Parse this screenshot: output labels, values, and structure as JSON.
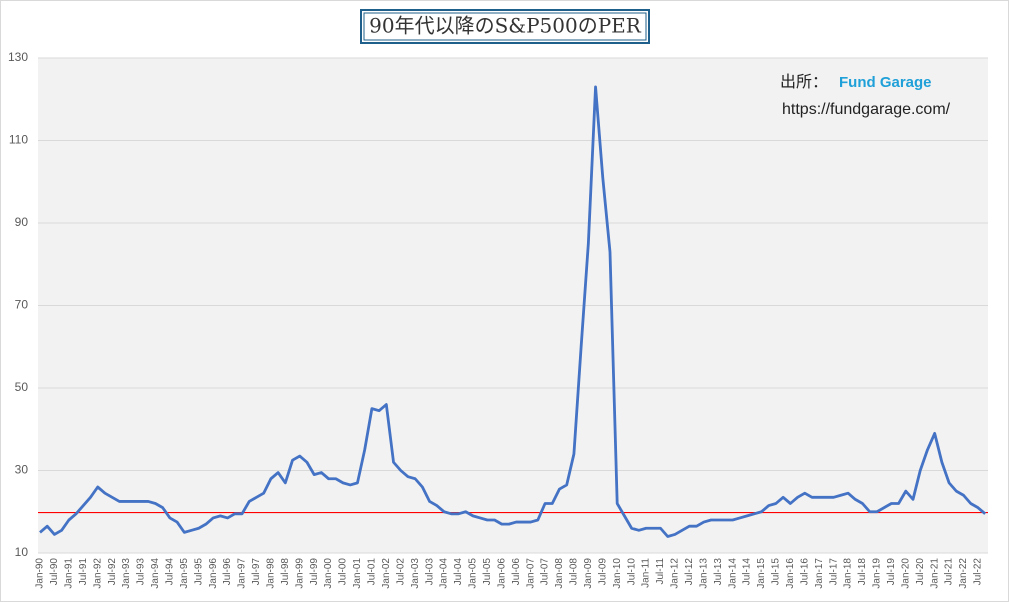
{
  "chart_data": {
    "type": "line",
    "title": "90年代以降のS&P500のPER",
    "annotations": {
      "source_label": "出所：",
      "source_name": "Fund Garage",
      "source_url": "https://fundgarage.com/"
    },
    "categories": [
      "Jan-90",
      null,
      "Jul-90",
      null,
      "Jan-91",
      null,
      "Jul-91",
      null,
      "Jan-92",
      null,
      "Jul-92",
      null,
      "Jan-93",
      null,
      "Jul-93",
      null,
      "Jan-94",
      null,
      "Jul-94",
      null,
      "Jan-95",
      null,
      "Jul-95",
      null,
      "Jan-96",
      null,
      "Jul-96",
      null,
      "Jan-97",
      null,
      "Jul-97",
      null,
      "Jan-98",
      null,
      "Jul-98",
      null,
      "Jan-99",
      null,
      "Jul-99",
      null,
      "Jan-00",
      null,
      "Jul-00",
      null,
      "Jan-01",
      null,
      "Jul-01",
      null,
      "Jan-02",
      null,
      "Jul-02",
      null,
      "Jan-03",
      null,
      "Jul-03",
      null,
      "Jan-04",
      null,
      "Jul-04",
      null,
      "Jan-05",
      null,
      "Jul-05",
      null,
      "Jan-06",
      null,
      "Jul-06",
      null,
      "Jan-07",
      null,
      "Jul-07",
      null,
      "Jan-08",
      null,
      "Jul-08",
      null,
      "Jan-09",
      null,
      "Jul-09",
      null,
      "Jan-10",
      null,
      "Jul-10",
      null,
      "Jan-11",
      null,
      "Jul-11",
      null,
      "Jan-12",
      null,
      "Jul-12",
      null,
      "Jan-13",
      null,
      "Jul-13",
      null,
      "Jan-14",
      null,
      "Jul-14",
      null,
      "Jan-15",
      null,
      "Jul-15",
      null,
      "Jan-16",
      null,
      "Jul-16",
      null,
      "Jan-17",
      null,
      "Jul-17",
      null,
      "Jan-18",
      null,
      "Jul-18",
      null,
      "Jan-19",
      null,
      "Jul-19",
      null,
      "Jan-20",
      null,
      "Jul-20",
      null,
      "Jan-21",
      null,
      "Jul-21",
      null,
      "Jan-22",
      null,
      "Jul-22",
      null
    ],
    "series": [
      {
        "name": "PER",
        "color": "#4472c4",
        "values": [
          15,
          16.5,
          14.5,
          15.5,
          18,
          19.5,
          21.5,
          23.5,
          26,
          24.5,
          23.5,
          22.5,
          22.5,
          22.5,
          22.5,
          22.5,
          22,
          21,
          18.5,
          17.5,
          15,
          15.5,
          16,
          17,
          18.5,
          19,
          18.5,
          19.5,
          19.5,
          22.5,
          23.5,
          24.5,
          28,
          29.5,
          27,
          32.5,
          33.5,
          32,
          29,
          29.5,
          28,
          28,
          27,
          26.5,
          27,
          35,
          45,
          44.5,
          46,
          32,
          30,
          28.5,
          28,
          26,
          22.5,
          21.5,
          20,
          19.5,
          19.5,
          20,
          19,
          18.5,
          18,
          18,
          17,
          17,
          17.5,
          17.5,
          17.5,
          18,
          22,
          22,
          25.5,
          26.5,
          34,
          60,
          85,
          123,
          101,
          83,
          22,
          19,
          16,
          15.5,
          16,
          16,
          16,
          14,
          14.5,
          15.5,
          16.5,
          16.5,
          17.5,
          18,
          18,
          18,
          18,
          18.5,
          19,
          19.5,
          20,
          21.5,
          22,
          23.5,
          22,
          23.5,
          24.5,
          23.5,
          23.5,
          23.5,
          23.5,
          24,
          24.5,
          23,
          22,
          20,
          20,
          21,
          22,
          22,
          25,
          23,
          30,
          35,
          39,
          32,
          27,
          25,
          24,
          22,
          21,
          19.5
        ]
      }
    ],
    "reference_line": {
      "value": 19.8,
      "color": "#ff0000"
    },
    "ylim": [
      10,
      130
    ],
    "yticks": [
      10,
      30,
      50,
      70,
      90,
      110,
      130
    ],
    "grid": true
  }
}
